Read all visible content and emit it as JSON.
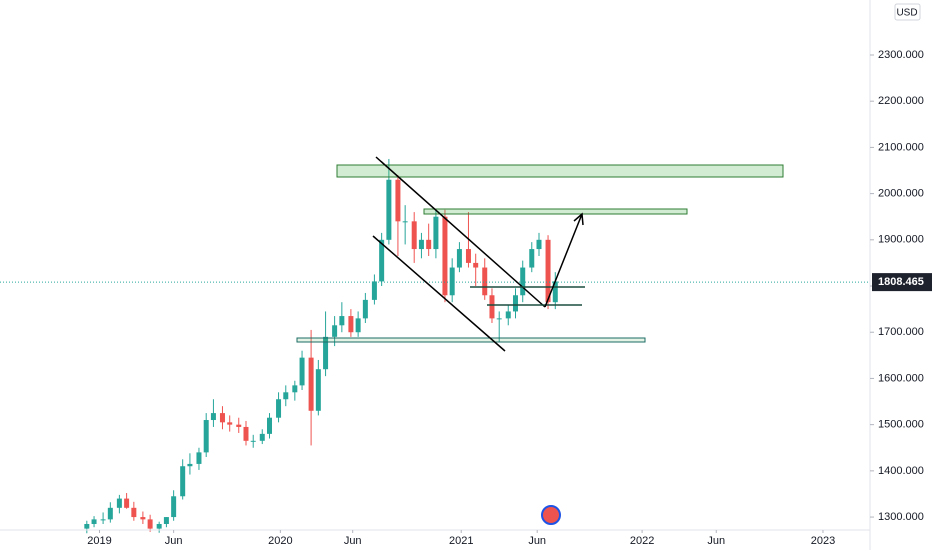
{
  "chart_data": {
    "type": "candlestick",
    "currency": "USD",
    "last_price": 1808.465,
    "up_color": "#26a69a",
    "down_color": "#ef5350",
    "x": [
      2018.93,
      2018.97,
      2019.02,
      2019.06,
      2019.11,
      2019.15,
      2019.19,
      2019.24,
      2019.28,
      2019.33,
      2019.37,
      2019.41,
      2019.46,
      2019.5,
      2019.55,
      2019.59,
      2019.63,
      2019.68,
      2019.72,
      2019.77,
      2019.81,
      2019.85,
      2019.9,
      2019.94,
      2019.99,
      2020.03,
      2020.08,
      2020.12,
      2020.17,
      2020.21,
      2020.25,
      2020.3,
      2020.34,
      2020.39,
      2020.43,
      2020.47,
      2020.52,
      2020.56,
      2020.6,
      2020.65,
      2020.69,
      2020.74,
      2020.78,
      2020.82,
      2020.86,
      2020.91,
      2020.95,
      2020.99,
      2021.04,
      2021.08,
      2021.13,
      2021.17,
      2021.21,
      2021.26,
      2021.3,
      2021.34,
      2021.39,
      2021.43,
      2021.48,
      2021.52
    ],
    "open": [
      1275,
      1285,
      1295,
      1295,
      1320,
      1340,
      1320,
      1300,
      1295,
      1275,
      1285,
      1300,
      1345,
      1410,
      1415,
      1440,
      1510,
      1525,
      1505,
      1500,
      1495,
      1465,
      1465,
      1480,
      1515,
      1555,
      1570,
      1585,
      1645,
      1530,
      1620,
      1690,
      1715,
      1735,
      1700,
      1730,
      1770,
      1810,
      1900,
      2030,
      1940,
      1940,
      1880,
      1900,
      1880,
      1950,
      1780,
      1840,
      1880,
      1850,
      1840,
      1780,
      1730,
      1730,
      1745,
      1780,
      1840,
      1880,
      1900,
      1765
    ],
    "high": [
      1292,
      1302,
      1310,
      1332,
      1348,
      1352,
      1333,
      1312,
      1305,
      1290,
      1300,
      1358,
      1425,
      1438,
      1450,
      1525,
      1555,
      1540,
      1520,
      1515,
      1508,
      1478,
      1490,
      1525,
      1570,
      1585,
      1595,
      1660,
      1705,
      1640,
      1745,
      1735,
      1765,
      1750,
      1745,
      1785,
      1825,
      1915,
      2075,
      2040,
      1975,
      1960,
      1915,
      1935,
      1965,
      1965,
      1860,
      1895,
      1960,
      1870,
      1860,
      1795,
      1745,
      1760,
      1795,
      1855,
      1895,
      1915,
      1910,
      1830
    ],
    "low": [
      1265,
      1278,
      1285,
      1288,
      1308,
      1318,
      1292,
      1285,
      1268,
      1266,
      1278,
      1292,
      1338,
      1392,
      1402,
      1430,
      1495,
      1490,
      1485,
      1482,
      1455,
      1450,
      1458,
      1470,
      1505,
      1540,
      1552,
      1575,
      1455,
      1520,
      1605,
      1670,
      1700,
      1690,
      1690,
      1720,
      1760,
      1800,
      1890,
      1865,
      1890,
      1850,
      1860,
      1865,
      1860,
      1765,
      1765,
      1830,
      1840,
      1800,
      1770,
      1720,
      1680,
      1715,
      1730,
      1765,
      1830,
      1865,
      1750,
      1750
    ],
    "close": [
      1285,
      1295,
      1295,
      1320,
      1340,
      1320,
      1300,
      1295,
      1275,
      1285,
      1300,
      1345,
      1410,
      1415,
      1440,
      1510,
      1525,
      1505,
      1500,
      1495,
      1465,
      1465,
      1480,
      1515,
      1555,
      1570,
      1585,
      1645,
      1530,
      1620,
      1690,
      1715,
      1735,
      1700,
      1730,
      1770,
      1810,
      1900,
      2030,
      1940,
      1940,
      1880,
      1900,
      1880,
      1950,
      1780,
      1840,
      1880,
      1850,
      1840,
      1780,
      1730,
      1730,
      1745,
      1780,
      1840,
      1880,
      1900,
      1765,
      1810
    ],
    "xlim": [
      2018.45,
      2023.26
    ],
    "xticks": [
      {
        "value": 2019,
        "label": "2019"
      },
      {
        "value": 2019.41,
        "label": "Jun"
      },
      {
        "value": 2020,
        "label": "2020"
      },
      {
        "value": 2020.4,
        "label": "Jun"
      },
      {
        "value": 2021,
        "label": "2021"
      },
      {
        "value": 2021.42,
        "label": "Jun"
      },
      {
        "value": 2022,
        "label": "2022"
      },
      {
        "value": 2022.41,
        "label": "Jun"
      },
      {
        "value": 2023,
        "label": "2023"
      }
    ],
    "ylim": [
      1272,
      2419
    ],
    "yticks": [
      {
        "value": 1300,
        "label": "1300.000"
      },
      {
        "value": 1400,
        "label": "1400.000"
      },
      {
        "value": 1500,
        "label": "1500.000"
      },
      {
        "value": 1600,
        "label": "1600.000"
      },
      {
        "value": 1700,
        "label": "1700.000"
      },
      {
        "value": 1800,
        "label": "1800.000"
      },
      {
        "value": 1900,
        "label": "1900.000"
      },
      {
        "value": 2000,
        "label": "2000.000"
      },
      {
        "value": 2100,
        "label": "2100.000"
      },
      {
        "value": 2200,
        "label": "2200.000"
      },
      {
        "value": 2300,
        "label": "2300.000"
      }
    ],
    "grid": false
  }
}
